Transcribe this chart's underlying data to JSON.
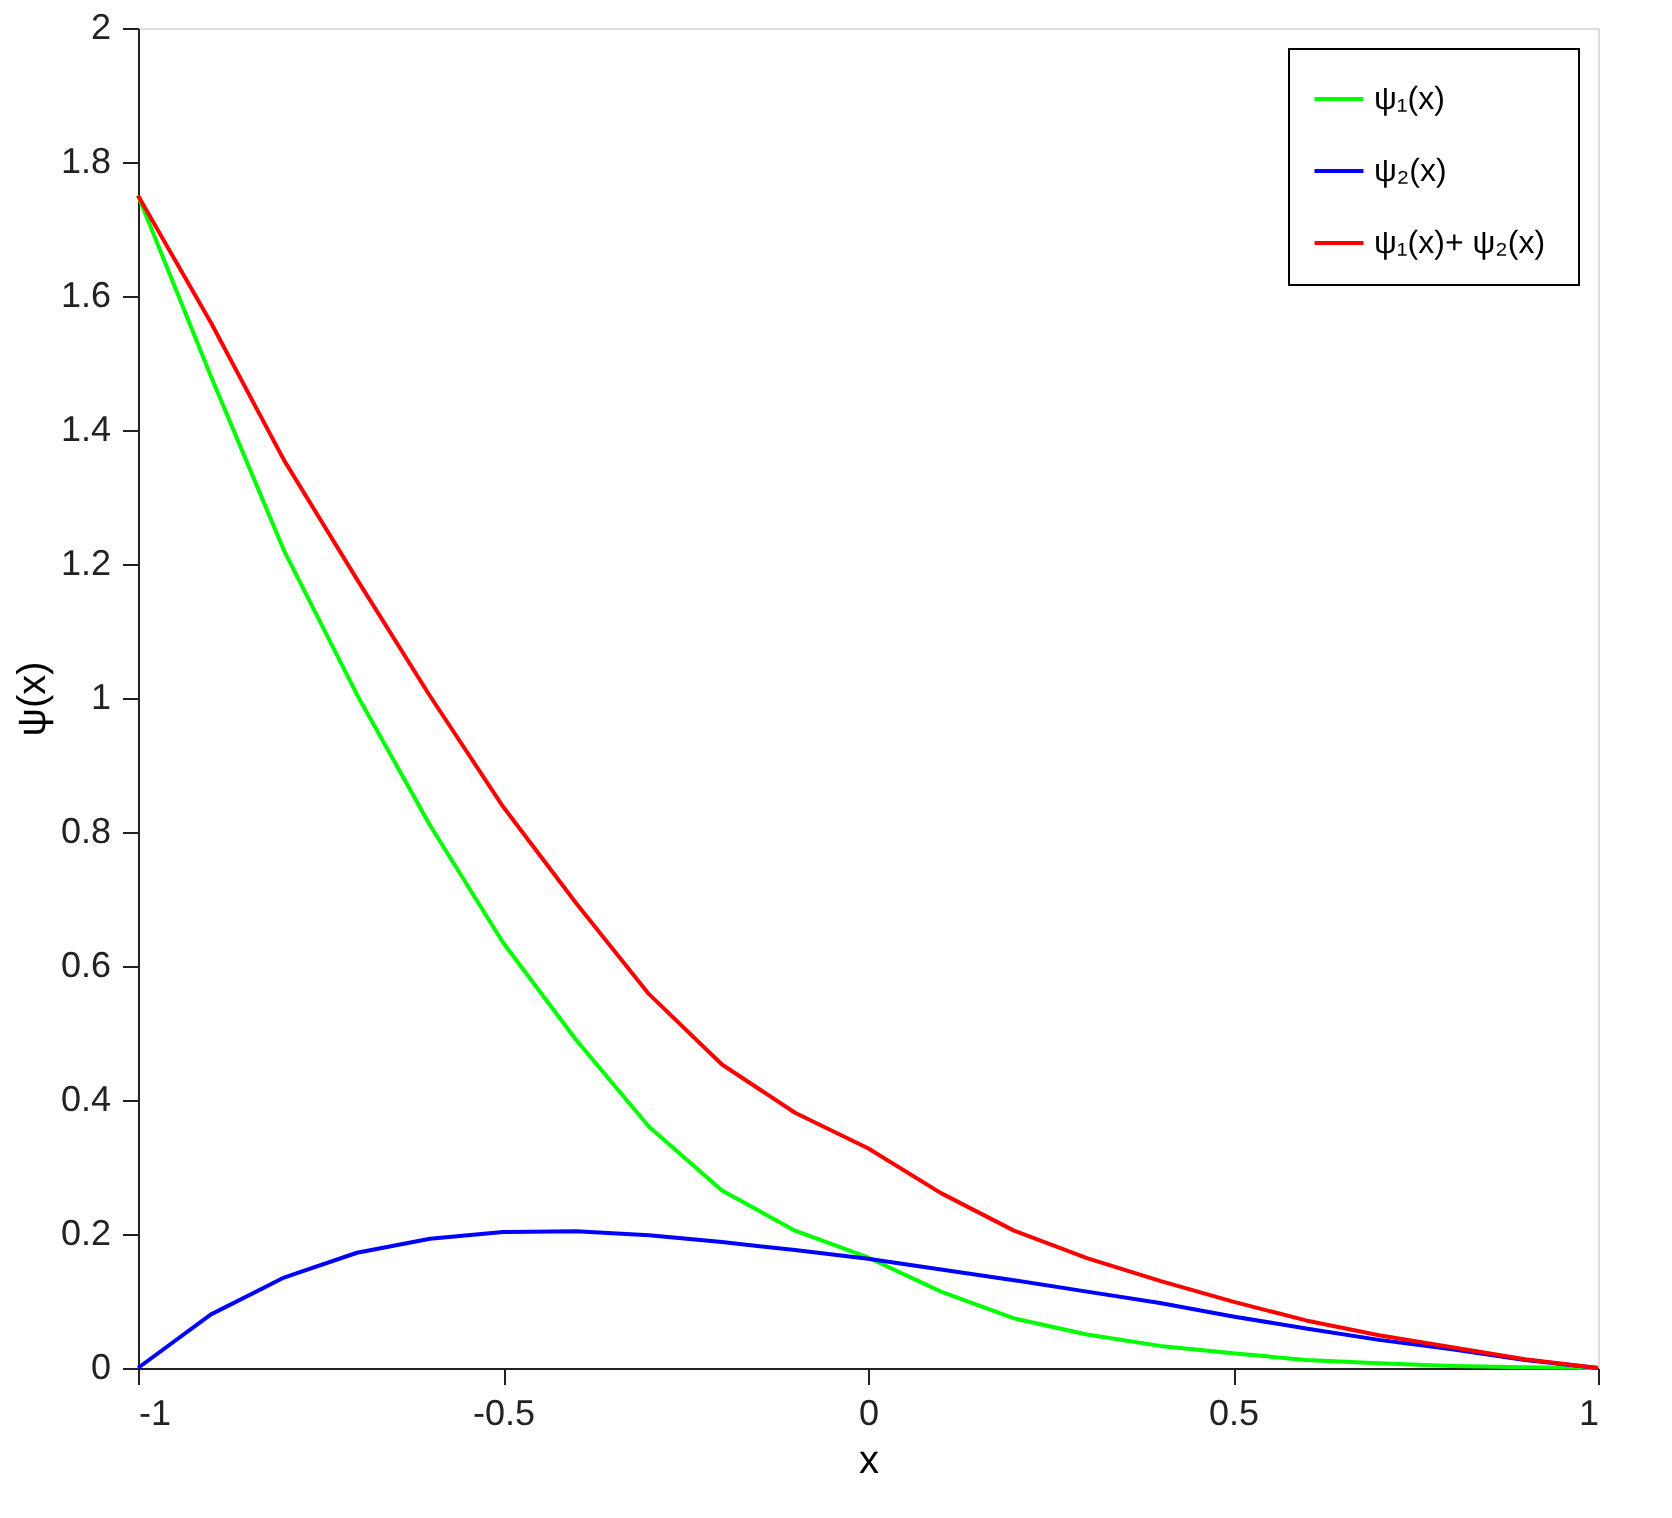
{
  "chart_data": {
    "type": "line",
    "xlabel": "x",
    "ylabel": "ψ(x)",
    "x": [
      -1,
      -0.9,
      -0.8,
      -0.7,
      -0.6,
      -0.5,
      -0.4,
      -0.3,
      -0.2,
      -0.1,
      0,
      0.1,
      0.2,
      0.3,
      0.4,
      0.5,
      0.6,
      0.7,
      0.8,
      0.9,
      1
    ],
    "series": [
      {
        "name": "ψ₁(x)",
        "color": "#00ff00",
        "values": [
          1.75,
          1.48,
          1.22,
          1.005,
          0.81,
          0.635,
          0.49,
          0.36,
          0.265,
          0.205,
          0.165,
          0.114,
          0.074,
          0.05,
          0.033,
          0.022,
          0.012,
          0.007,
          0.003,
          0.001,
          0
        ]
      },
      {
        "name": "ψ₂(x)",
        "color": "#0000ff",
        "values": [
          0,
          0.08,
          0.135,
          0.172,
          0.193,
          0.203,
          0.204,
          0.198,
          0.188,
          0.176,
          0.163,
          0.147,
          0.131,
          0.114,
          0.097,
          0.077,
          0.059,
          0.042,
          0.028,
          0.012,
          0
        ]
      },
      {
        "name": "ψ₁(x)+  ψ₂(x)",
        "color": "#ff0000",
        "values": [
          1.75,
          1.56,
          1.355,
          1.177,
          1.003,
          0.838,
          0.694,
          0.558,
          0.453,
          0.381,
          0.328,
          0.261,
          0.205,
          0.164,
          0.13,
          0.099,
          0.071,
          0.049,
          0.031,
          0.013,
          0
        ]
      }
    ],
    "xlim": [
      -1,
      1
    ],
    "xticks": [
      -1,
      -0.5,
      0,
      0.5,
      1
    ],
    "ylim": [
      0,
      2
    ],
    "yticks": [
      0,
      0.2,
      0.4,
      0.6,
      0.8,
      1,
      1.2,
      1.4,
      1.6,
      1.8,
      2
    ],
    "grid": false,
    "legend": "top right",
    "line_style": "solid",
    "marker": "none"
  }
}
